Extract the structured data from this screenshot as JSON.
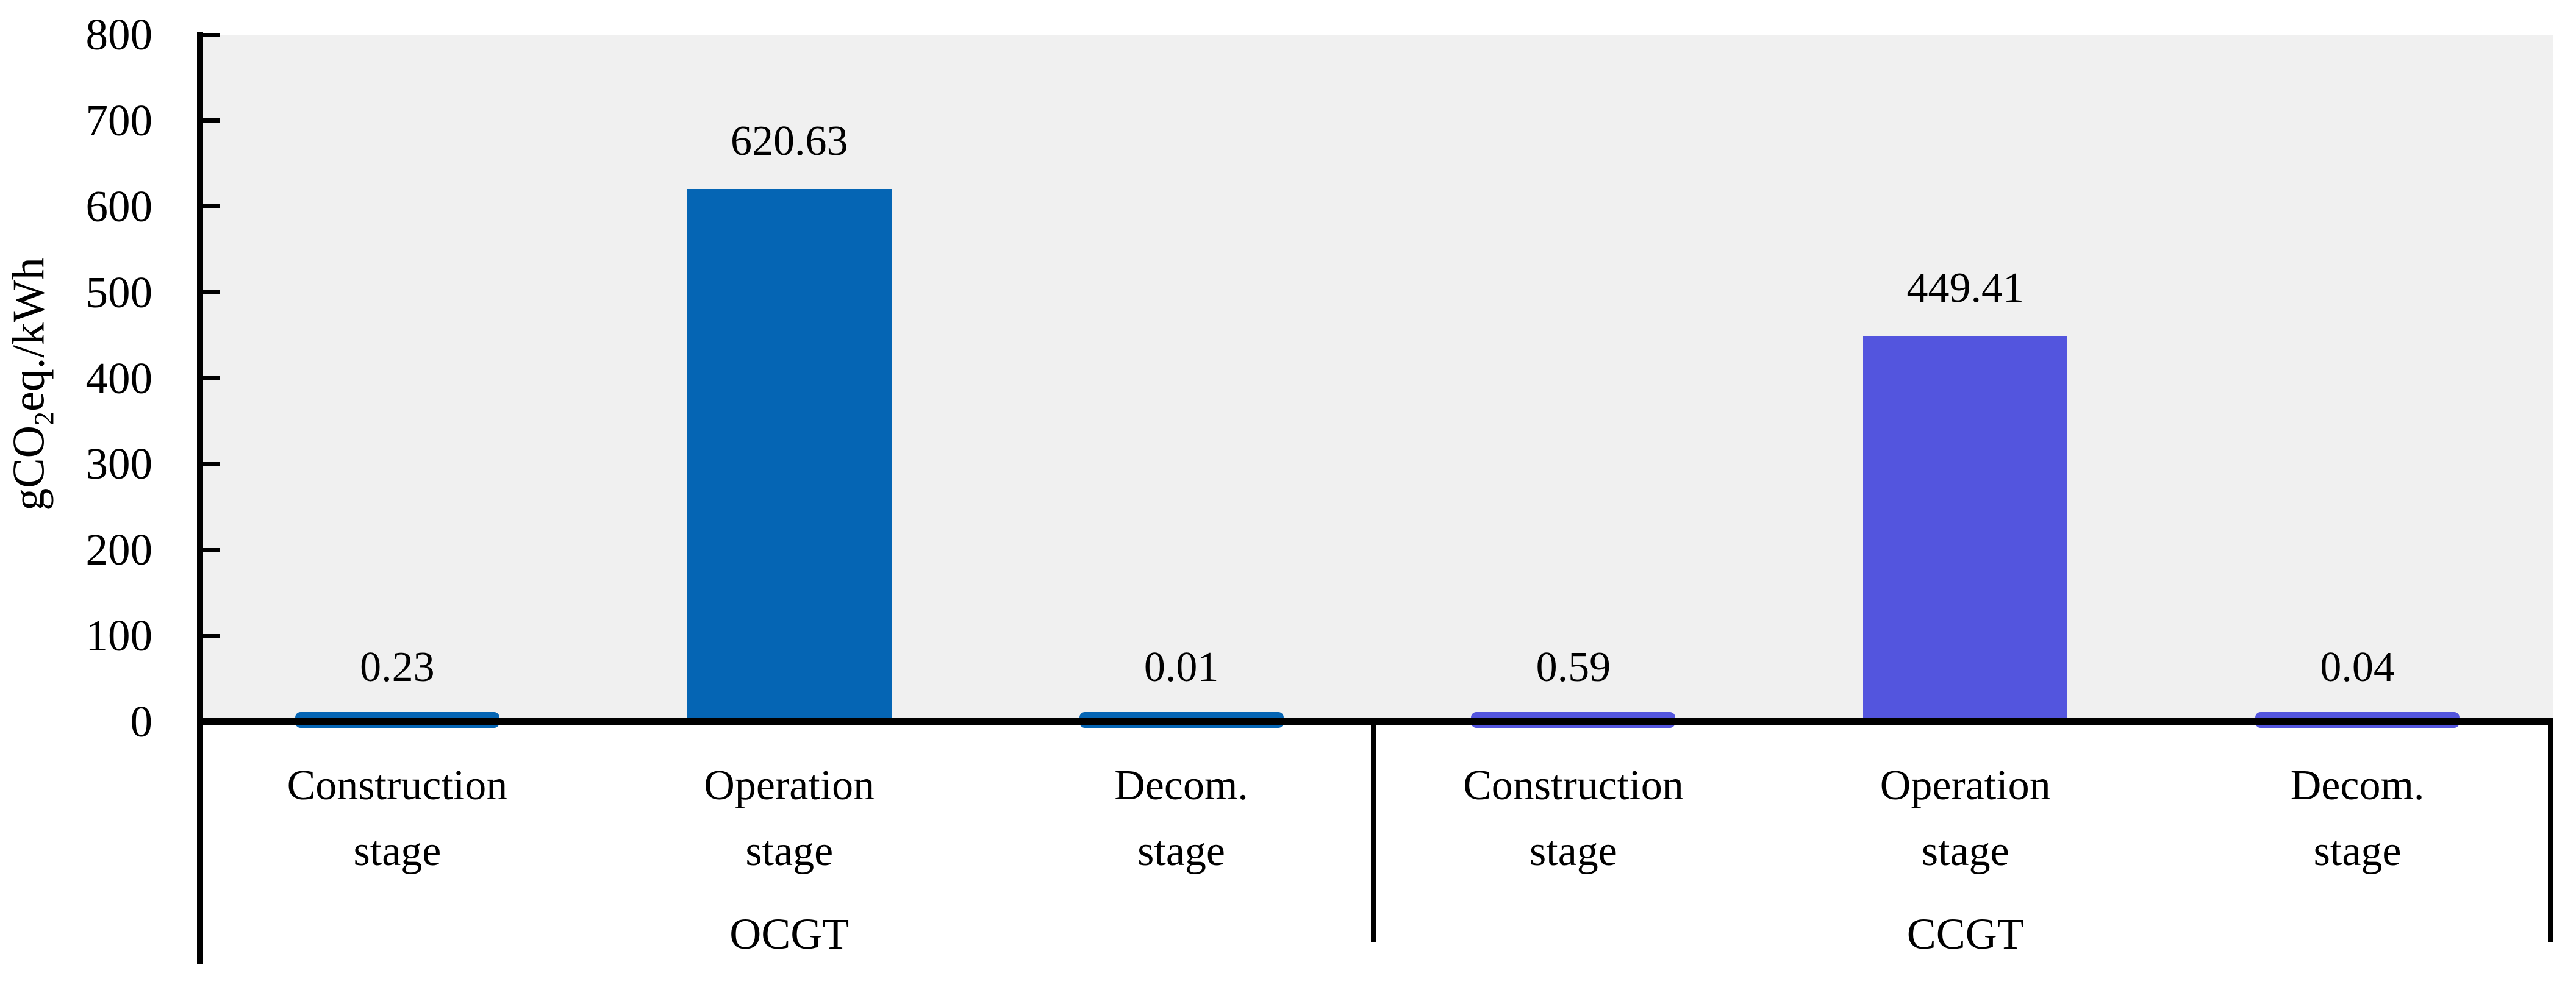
{
  "figure": {
    "background": "#FFFFFF",
    "plot_background": "#F0F0F0",
    "axis_color": "#000000",
    "text_color": "#000000"
  },
  "axis": {
    "y_title_parts": {
      "prefix": "gCO",
      "sub": "2",
      "suffix": "eq./kWh"
    }
  },
  "chart_data": {
    "type": "bar",
    "title": "",
    "xlabel": "",
    "ylabel": "gCO2eq./kWh",
    "ylim": [
      0,
      800
    ],
    "ytick_step": 100,
    "ytick_labels": [
      "0",
      "100",
      "200",
      "300",
      "400",
      "500",
      "600",
      "700",
      "800"
    ],
    "grid": false,
    "legend_position": "none",
    "groups": [
      {
        "label": "OCGT",
        "color": "#0565B4",
        "categories": [
          "Construction stage",
          "Operation stage",
          "Decom. stage"
        ],
        "category_lines": [
          [
            "Construction",
            "stage"
          ],
          [
            "Operation",
            "stage"
          ],
          [
            "Decom.",
            "stage"
          ]
        ],
        "values": [
          0.23,
          620.63,
          0.01
        ],
        "value_labels": [
          "0.23",
          "620.63",
          "0.01"
        ]
      },
      {
        "label": "CCGT",
        "color": "#5355DE",
        "categories": [
          "Construction stage",
          "Operation stage",
          "Decom. stage"
        ],
        "category_lines": [
          [
            "Construction",
            "stage"
          ],
          [
            "Operation",
            "stage"
          ],
          [
            "Decom.",
            "stage"
          ]
        ],
        "values": [
          0.59,
          449.41,
          0.04
        ],
        "value_labels": [
          "0.59",
          "449.41",
          "0.04"
        ]
      }
    ]
  }
}
